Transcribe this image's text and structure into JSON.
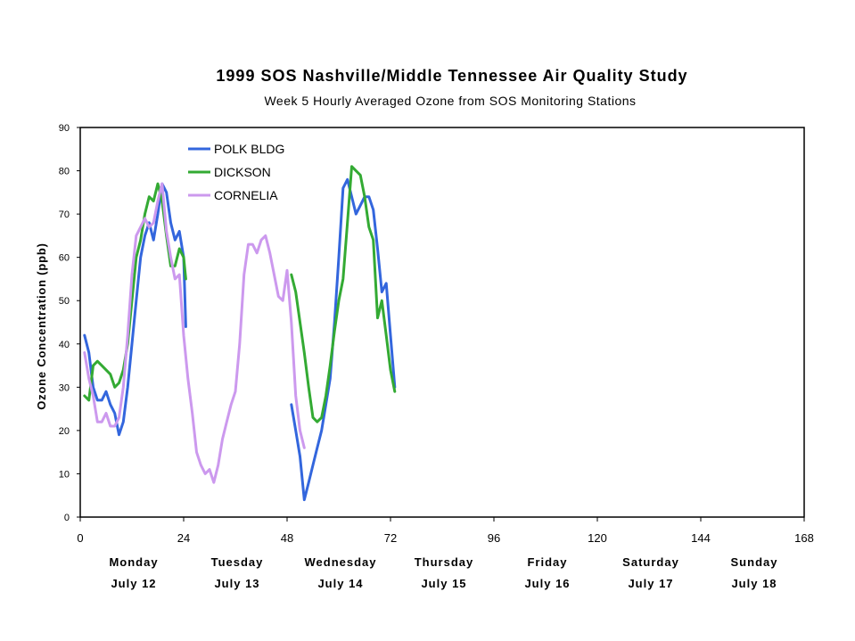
{
  "chart_data": {
    "type": "line",
    "title": "1999 SOS Nashville/Middle Tennessee Air Quality Study",
    "subtitle": "Week 5 Hourly Averaged Ozone from SOS Monitoring Stations",
    "ylabel": "Ozone Concentration (ppb)",
    "xlabel": "",
    "xlim": [
      0,
      168
    ],
    "ylim": [
      0,
      90
    ],
    "xticks": [
      "0",
      "24",
      "48",
      "72",
      "96",
      "120",
      "144",
      "168"
    ],
    "yticks": [
      "0",
      "10",
      "20",
      "30",
      "40",
      "50",
      "60",
      "70",
      "80",
      "90"
    ],
    "grid": false,
    "legend": "top-left",
    "days": [
      {
        "name": "Monday",
        "date": "July 12"
      },
      {
        "name": "Tuesday",
        "date": "July 13"
      },
      {
        "name": "Wednesday",
        "date": "July 14"
      },
      {
        "name": "Thursday",
        "date": "July 15"
      },
      {
        "name": "Friday",
        "date": "July 16"
      },
      {
        "name": "Saturday",
        "date": "July 17"
      },
      {
        "name": "Sunday",
        "date": "July 18"
      }
    ],
    "series": [
      {
        "name": "POLK BLDG",
        "color": "#3366dd",
        "segments": [
          [
            [
              1,
              42
            ],
            [
              2,
              38
            ],
            [
              3,
              30
            ],
            [
              4,
              27
            ],
            [
              5,
              27
            ],
            [
              6,
              29
            ],
            [
              7,
              26
            ],
            [
              8,
              24
            ],
            [
              9,
              19
            ],
            [
              10,
              22
            ],
            [
              11,
              30
            ],
            [
              12,
              40
            ],
            [
              13,
              50
            ],
            [
              14,
              60
            ],
            [
              15,
              65
            ],
            [
              16,
              68
            ],
            [
              17,
              64
            ],
            [
              18,
              70
            ],
            [
              19,
              77
            ],
            [
              20,
              75
            ],
            [
              21,
              68
            ],
            [
              22,
              64
            ],
            [
              23,
              66
            ],
            [
              24,
              60
            ],
            [
              24.5,
              44
            ]
          ],
          [
            [
              49,
              26
            ],
            [
              50,
              20
            ],
            [
              51,
              14
            ],
            [
              52,
              4
            ],
            [
              53,
              8
            ],
            [
              54,
              12
            ],
            [
              55,
              16
            ],
            [
              56,
              20
            ],
            [
              57,
              26
            ],
            [
              58,
              32
            ],
            [
              59,
              45
            ],
            [
              60,
              60
            ],
            [
              61,
              76
            ],
            [
              62,
              78
            ],
            [
              63,
              74
            ],
            [
              64,
              70
            ],
            [
              65,
              72
            ],
            [
              66,
              74
            ],
            [
              67,
              74
            ],
            [
              68,
              71
            ],
            [
              69,
              62
            ],
            [
              70,
              52
            ],
            [
              71,
              54
            ],
            [
              72,
              42
            ],
            [
              73,
              30
            ]
          ]
        ]
      },
      {
        "name": "DICKSON",
        "color": "#33aa33",
        "segments": [
          [
            [
              1,
              28
            ],
            [
              2,
              27
            ],
            [
              3,
              35
            ],
            [
              4,
              36
            ],
            [
              5,
              35
            ],
            [
              6,
              34
            ],
            [
              7,
              33
            ],
            [
              8,
              30
            ],
            [
              9,
              31
            ],
            [
              10,
              34
            ],
            [
              11,
              40
            ],
            [
              12,
              50
            ],
            [
              13,
              60
            ],
            [
              14,
              64
            ],
            [
              15,
              70
            ],
            [
              16,
              74
            ],
            [
              17,
              73
            ],
            [
              18,
              77
            ],
            [
              19,
              73
            ],
            [
              20,
              65
            ],
            [
              21,
              58
            ],
            [
              22,
              58
            ],
            [
              23,
              62
            ],
            [
              24,
              60
            ],
            [
              24.5,
              55
            ]
          ],
          [
            [
              49,
              56
            ],
            [
              50,
              52
            ],
            [
              51,
              45
            ],
            [
              52,
              38
            ],
            [
              53,
              30
            ],
            [
              54,
              23
            ],
            [
              55,
              22
            ],
            [
              56,
              23
            ],
            [
              57,
              28
            ],
            [
              58,
              35
            ],
            [
              59,
              43
            ],
            [
              60,
              50
            ],
            [
              61,
              55
            ],
            [
              62,
              68
            ],
            [
              63,
              81
            ],
            [
              64,
              80
            ],
            [
              65,
              79
            ],
            [
              66,
              74
            ],
            [
              67,
              67
            ],
            [
              68,
              64
            ],
            [
              69,
              46
            ],
            [
              70,
              50
            ],
            [
              71,
              42
            ],
            [
              72,
              34
            ],
            [
              73,
              29
            ]
          ]
        ]
      },
      {
        "name": "CORNELIA",
        "color": "#cc99ee",
        "segments": [
          [
            [
              1,
              38
            ],
            [
              2,
              32
            ],
            [
              3,
              28
            ],
            [
              4,
              22
            ],
            [
              5,
              22
            ],
            [
              6,
              24
            ],
            [
              7,
              21
            ],
            [
              8,
              21
            ],
            [
              9,
              23
            ],
            [
              10,
              30
            ],
            [
              11,
              42
            ],
            [
              12,
              56
            ],
            [
              13,
              65
            ],
            [
              14,
              67
            ],
            [
              15,
              69
            ],
            [
              16,
              67
            ],
            [
              17,
              68
            ],
            [
              18,
              73
            ],
            [
              19,
              77
            ],
            [
              20,
              66
            ],
            [
              21,
              60
            ],
            [
              22,
              55
            ],
            [
              23,
              56
            ],
            [
              24,
              42
            ],
            [
              25,
              32
            ],
            [
              26,
              24
            ],
            [
              27,
              15
            ],
            [
              28,
              12
            ],
            [
              29,
              10
            ],
            [
              30,
              11
            ],
            [
              31,
              8
            ],
            [
              32,
              12
            ],
            [
              33,
              18
            ],
            [
              34,
              22
            ],
            [
              35,
              26
            ],
            [
              36,
              29
            ],
            [
              37,
              40
            ],
            [
              38,
              56
            ],
            [
              39,
              63
            ],
            [
              40,
              63
            ],
            [
              41,
              61
            ],
            [
              42,
              64
            ],
            [
              43,
              65
            ],
            [
              44,
              61
            ],
            [
              45,
              56
            ],
            [
              46,
              51
            ],
            [
              47,
              50
            ],
            [
              48,
              57
            ],
            [
              49,
              45
            ],
            [
              50,
              28
            ],
            [
              51,
              20
            ],
            [
              52,
              16
            ]
          ]
        ]
      }
    ]
  }
}
